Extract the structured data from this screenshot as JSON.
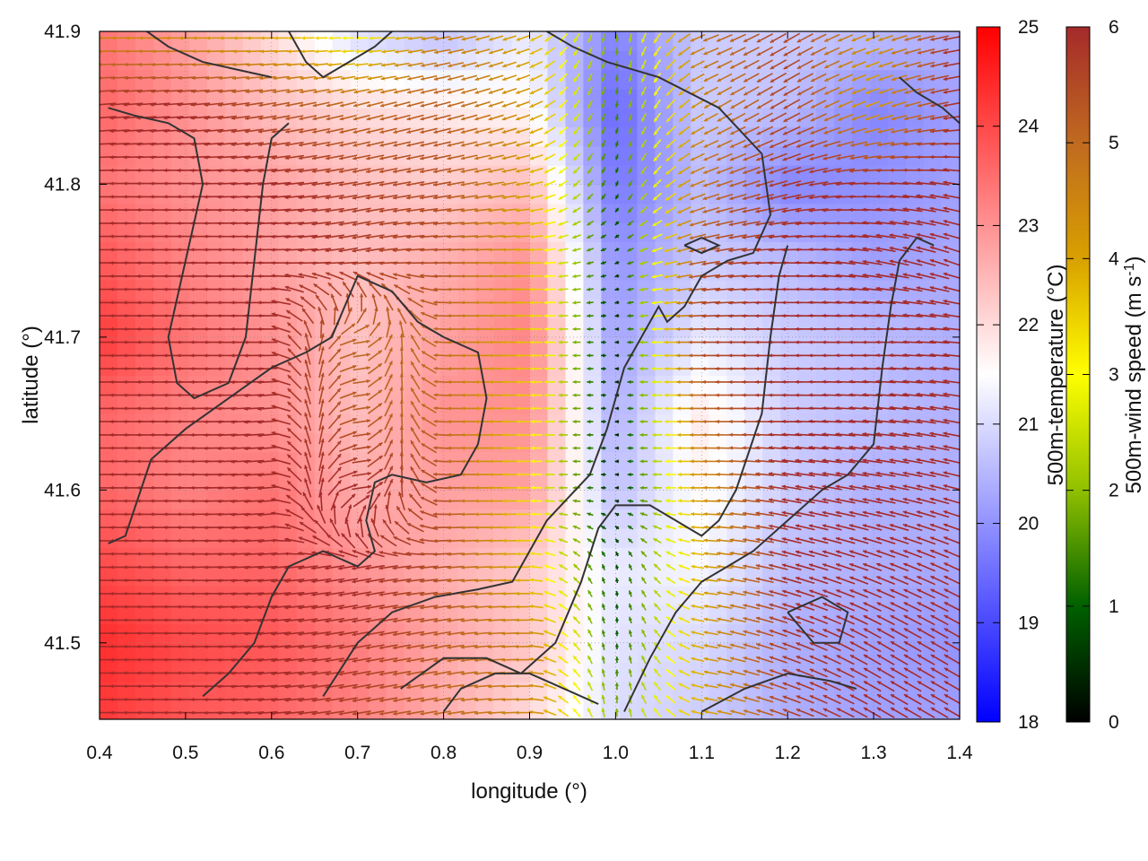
{
  "chart_data": {
    "type": "heatmap",
    "title": "",
    "xlabel": "longitude (°)",
    "ylabel": "latitude (°)",
    "xlim": [
      0.4,
      1.4
    ],
    "ylim": [
      41.45,
      41.9
    ],
    "x_ticks": [
      "0.4",
      "0.5",
      "0.6",
      "0.7",
      "0.8",
      "0.9",
      "1.0",
      "1.1",
      "1.2",
      "1.3",
      "1.4"
    ],
    "y_ticks": [
      "41.5",
      "41.6",
      "41.7",
      "41.8",
      "41.9"
    ],
    "x_tick_values": [
      0.4,
      0.5,
      0.6,
      0.7,
      0.8,
      0.9,
      1.0,
      1.1,
      1.2,
      1.3,
      1.4
    ],
    "y_tick_values": [
      41.5,
      41.6,
      41.7,
      41.8,
      41.9
    ],
    "grid": true,
    "temperature_colorbar": {
      "label": "500m-temperature (°C)",
      "range": [
        18,
        25
      ],
      "ticks": [
        "18",
        "19",
        "20",
        "21",
        "22",
        "23",
        "24",
        "25"
      ],
      "tick_values": [
        18,
        19,
        20,
        21,
        22,
        23,
        24,
        25
      ],
      "colors": [
        "#0000ff",
        "#ffffff",
        "#ff0000"
      ]
    },
    "wind_colorbar": {
      "label_main": "500m-wind speed (m s",
      "label_sup": "-1",
      "label_end": ")",
      "range": [
        0,
        6
      ],
      "ticks": [
        "0",
        "1",
        "2",
        "3",
        "4",
        "5",
        "6"
      ],
      "tick_values": [
        0,
        1,
        2,
        3,
        4,
        5,
        6
      ],
      "colors": [
        "#000000",
        "#006000",
        "#90c000",
        "#ffff00",
        "#d8a000",
        "#c06a20",
        "#a52a2a"
      ]
    },
    "temperature_field": {
      "lon": [
        0.4,
        0.5,
        0.6,
        0.7,
        0.8,
        0.9,
        1.0,
        1.1,
        1.2,
        1.3,
        1.4
      ],
      "lat": [
        41.45,
        41.5,
        41.55,
        41.6,
        41.65,
        41.7,
        41.75,
        41.8,
        41.85,
        41.9
      ],
      "values": [
        [
          24.2,
          23.8,
          23.6,
          23.2,
          22.6,
          22.0,
          21.0,
          20.8,
          20.4,
          20.2,
          20.2
        ],
        [
          24.4,
          24.0,
          23.8,
          23.3,
          22.7,
          22.3,
          21.1,
          21.0,
          20.4,
          20.2,
          20.0
        ],
        [
          24.0,
          23.6,
          23.6,
          23.0,
          22.6,
          22.2,
          21.2,
          21.4,
          20.6,
          20.4,
          20.3
        ],
        [
          23.6,
          23.2,
          23.4,
          22.6,
          22.8,
          22.8,
          20.6,
          21.6,
          20.8,
          20.4,
          20.4
        ],
        [
          23.6,
          23.2,
          23.0,
          22.4,
          23.0,
          23.0,
          20.4,
          21.8,
          20.8,
          20.6,
          20.4
        ],
        [
          24.2,
          23.4,
          23.0,
          22.3,
          22.8,
          23.2,
          20.2,
          21.2,
          20.8,
          20.6,
          20.4
        ],
        [
          23.8,
          23.2,
          22.8,
          22.4,
          22.6,
          23.0,
          20.0,
          20.8,
          20.6,
          20.2,
          20.3
        ],
        [
          23.4,
          23.0,
          22.8,
          22.4,
          22.2,
          22.4,
          19.6,
          20.6,
          19.8,
          20.0,
          20.2
        ],
        [
          23.6,
          23.0,
          22.4,
          22.0,
          21.8,
          21.6,
          19.4,
          20.8,
          20.6,
          19.8,
          20.2
        ],
        [
          23.4,
          22.8,
          22.0,
          21.0,
          20.6,
          21.2,
          19.8,
          20.8,
          20.8,
          20.6,
          20.4
        ]
      ]
    },
    "wind_speed_field": {
      "lon": [
        0.4,
        0.5,
        0.6,
        0.7,
        0.8,
        0.9,
        1.0,
        1.1,
        1.2,
        1.3,
        1.4
      ],
      "lat": [
        41.45,
        41.5,
        41.55,
        41.6,
        41.65,
        41.7,
        41.75,
        41.8,
        41.85,
        41.9
      ],
      "values": [
        [
          6.0,
          6.0,
          6.0,
          5.6,
          5.0,
          4.4,
          2.0,
          3.8,
          5.6,
          6.0,
          6.0
        ],
        [
          6.0,
          6.0,
          6.0,
          5.8,
          5.2,
          4.6,
          1.0,
          4.0,
          5.8,
          6.0,
          6.0
        ],
        [
          6.0,
          6.0,
          6.0,
          6.0,
          5.4,
          3.6,
          0.8,
          3.8,
          6.0,
          6.0,
          6.0
        ],
        [
          6.0,
          6.0,
          6.0,
          6.0,
          5.4,
          3.2,
          0.4,
          4.2,
          6.0,
          6.0,
          6.0
        ],
        [
          6.0,
          6.0,
          6.0,
          5.2,
          5.0,
          3.4,
          0.4,
          5.0,
          6.0,
          6.0,
          6.0
        ],
        [
          6.0,
          6.0,
          6.0,
          5.0,
          5.0,
          3.6,
          0.4,
          5.6,
          6.0,
          6.0,
          6.0
        ],
        [
          6.0,
          6.0,
          6.0,
          5.8,
          5.4,
          3.8,
          0.6,
          5.4,
          6.0,
          6.0,
          6.0
        ],
        [
          6.0,
          6.0,
          6.0,
          5.6,
          5.4,
          4.0,
          1.0,
          4.8,
          5.8,
          6.0,
          6.0
        ],
        [
          6.0,
          6.0,
          5.4,
          5.0,
          5.2,
          4.2,
          1.4,
          4.4,
          5.6,
          4.0,
          6.0
        ],
        [
          4.4,
          4.2,
          3.8,
          2.8,
          4.6,
          3.8,
          1.8,
          4.8,
          5.6,
          4.2,
          6.0
        ]
      ]
    },
    "wind_direction_deg_from_east": {
      "lon": [
        0.4,
        0.5,
        0.6,
        0.7,
        0.8,
        0.9,
        1.0,
        1.1,
        1.2,
        1.3,
        1.4
      ],
      "lat": [
        41.45,
        41.5,
        41.55,
        41.6,
        41.65,
        41.7,
        41.75,
        41.8,
        41.85,
        41.9
      ],
      "values": [
        [
          180,
          180,
          185,
          190,
          190,
          180,
          90,
          170,
          160,
          150,
          150
        ],
        [
          180,
          180,
          185,
          190,
          190,
          180,
          90,
          170,
          160,
          150,
          150
        ],
        [
          180,
          180,
          185,
          190,
          185,
          180,
          100,
          175,
          165,
          160,
          155
        ],
        [
          180,
          180,
          185,
          0,
          180,
          180,
          180,
          180,
          170,
          170,
          165
        ],
        [
          180,
          180,
          185,
          0,
          180,
          180,
          180,
          180,
          180,
          175,
          170
        ],
        [
          180,
          180,
          180,
          0,
          180,
          180,
          180,
          180,
          180,
          180,
          175
        ],
        [
          180,
          180,
          180,
          190,
          180,
          180,
          200,
          190,
          180,
          170,
          160
        ],
        [
          180,
          180,
          185,
          190,
          190,
          190,
          250,
          200,
          195,
          180,
          170
        ],
        [
          185,
          185,
          190,
          195,
          195,
          200,
          260,
          210,
          210,
          200,
          190
        ],
        [
          180,
          180,
          180,
          180,
          190,
          200,
          270,
          200,
          210,
          200,
          190
        ]
      ]
    },
    "contour_lines": [
      [
        [
          0.41,
          41.565
        ],
        [
          0.43,
          41.57
        ],
        [
          0.46,
          41.62
        ],
        [
          0.5,
          41.64
        ],
        [
          0.55,
          41.66
        ],
        [
          0.6,
          41.68
        ],
        [
          0.64,
          41.69
        ],
        [
          0.67,
          41.7
        ],
        [
          0.7,
          41.74
        ],
        [
          0.74,
          41.73
        ],
        [
          0.77,
          41.71
        ],
        [
          0.8,
          41.7
        ],
        [
          0.84,
          41.69
        ],
        [
          0.85,
          41.66
        ],
        [
          0.84,
          41.63
        ],
        [
          0.82,
          41.61
        ],
        [
          0.78,
          41.605
        ],
        [
          0.74,
          41.61
        ],
        [
          0.72,
          41.605
        ],
        [
          0.71,
          41.58
        ],
        [
          0.72,
          41.56
        ],
        [
          0.7,
          41.55
        ],
        [
          0.66,
          41.56
        ],
        [
          0.62,
          41.55
        ],
        [
          0.6,
          41.53
        ],
        [
          0.58,
          41.5
        ],
        [
          0.55,
          41.48
        ],
        [
          0.52,
          41.465
        ]
      ],
      [
        [
          0.66,
          41.465
        ],
        [
          0.7,
          41.5
        ],
        [
          0.74,
          41.52
        ],
        [
          0.79,
          41.53
        ],
        [
          0.84,
          41.535
        ],
        [
          0.88,
          41.54
        ],
        [
          0.92,
          41.58
        ],
        [
          0.97,
          41.61
        ],
        [
          0.99,
          41.64
        ],
        [
          1.01,
          41.68
        ],
        [
          1.03,
          41.7
        ],
        [
          1.05,
          41.72
        ],
        [
          1.06,
          41.71
        ],
        [
          1.08,
          41.72
        ],
        [
          1.1,
          41.74
        ],
        [
          1.13,
          41.75
        ],
        [
          1.16,
          41.755
        ],
        [
          1.18,
          41.78
        ],
        [
          1.17,
          41.82
        ],
        [
          1.12,
          41.85
        ],
        [
          1.05,
          41.87
        ],
        [
          0.99,
          41.88
        ],
        [
          0.95,
          41.89
        ],
        [
          0.92,
          41.9
        ]
      ],
      [
        [
          0.75,
          41.47
        ],
        [
          0.8,
          41.49
        ],
        [
          0.85,
          41.49
        ],
        [
          0.89,
          41.48
        ],
        [
          0.93,
          41.5
        ],
        [
          0.96,
          41.54
        ],
        [
          0.98,
          41.575
        ],
        [
          1.0,
          41.59
        ],
        [
          1.04,
          41.59
        ],
        [
          1.07,
          41.58
        ],
        [
          1.1,
          41.57
        ],
        [
          1.12,
          41.58
        ],
        [
          1.14,
          41.6
        ],
        [
          1.17,
          41.65
        ],
        [
          1.18,
          41.7
        ],
        [
          1.19,
          41.74
        ],
        [
          1.2,
          41.76
        ]
      ],
      [
        [
          1.01,
          41.455
        ],
        [
          1.04,
          41.49
        ],
        [
          1.07,
          41.52
        ],
        [
          1.1,
          41.54
        ],
        [
          1.13,
          41.55
        ],
        [
          1.16,
          41.56
        ],
        [
          1.2,
          41.58
        ],
        [
          1.24,
          41.6
        ],
        [
          1.27,
          41.61
        ],
        [
          1.3,
          41.63
        ],
        [
          1.31,
          41.68
        ],
        [
          1.32,
          41.72
        ],
        [
          1.33,
          41.75
        ],
        [
          1.35,
          41.765
        ],
        [
          1.37,
          41.76
        ]
      ],
      [
        [
          0.41,
          41.85
        ],
        [
          0.44,
          41.845
        ],
        [
          0.48,
          41.84
        ],
        [
          0.51,
          41.83
        ],
        [
          0.52,
          41.8
        ],
        [
          0.5,
          41.75
        ],
        [
          0.48,
          41.7
        ],
        [
          0.49,
          41.67
        ],
        [
          0.51,
          41.66
        ],
        [
          0.55,
          41.67
        ],
        [
          0.57,
          41.7
        ],
        [
          0.58,
          41.75
        ],
        [
          0.59,
          41.8
        ],
        [
          0.6,
          41.83
        ],
        [
          0.62,
          41.84
        ]
      ],
      [
        [
          0.8,
          41.455
        ],
        [
          0.82,
          41.47
        ],
        [
          0.86,
          41.48
        ],
        [
          0.9,
          41.48
        ],
        [
          0.94,
          41.47
        ],
        [
          0.98,
          41.46
        ]
      ],
      [
        [
          1.1,
          41.455
        ],
        [
          1.15,
          41.47
        ],
        [
          1.2,
          41.48
        ],
        [
          1.25,
          41.475
        ],
        [
          1.28,
          41.47
        ]
      ],
      [
        [
          1.2,
          41.52
        ],
        [
          1.24,
          41.53
        ],
        [
          1.27,
          41.52
        ],
        [
          1.26,
          41.5
        ],
        [
          1.23,
          41.5
        ],
        [
          1.2,
          41.52
        ]
      ],
      [
        [
          0.62,
          41.9
        ],
        [
          0.64,
          41.88
        ],
        [
          0.66,
          41.87
        ],
        [
          0.69,
          41.88
        ],
        [
          0.72,
          41.89
        ],
        [
          0.74,
          41.9
        ]
      ],
      [
        [
          0.43,
          41.91
        ],
        [
          0.48,
          41.89
        ],
        [
          0.52,
          41.88
        ],
        [
          0.56,
          41.875
        ],
        [
          0.6,
          41.87
        ]
      ],
      [
        [
          1.08,
          41.76
        ],
        [
          1.1,
          41.765
        ],
        [
          1.12,
          41.76
        ],
        [
          1.1,
          41.755
        ],
        [
          1.08,
          41.76
        ]
      ],
      [
        [
          1.33,
          41.87
        ],
        [
          1.35,
          41.86
        ],
        [
          1.38,
          41.85
        ],
        [
          1.4,
          41.84
        ]
      ]
    ]
  }
}
